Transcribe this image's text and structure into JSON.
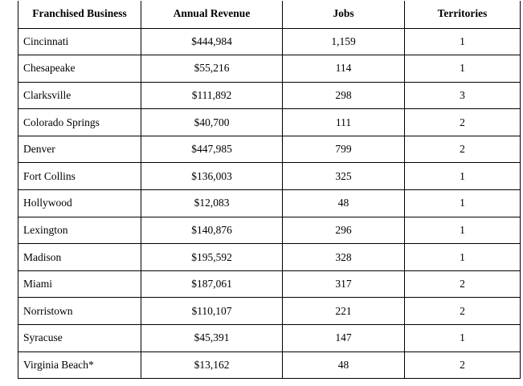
{
  "table": {
    "headers": [
      "Franchised Business",
      "Annual Revenue",
      "Jobs",
      "Territories"
    ],
    "rows": [
      {
        "name": "Cincinnati",
        "revenue": "$444,984",
        "jobs": "1,159",
        "territories": "1"
      },
      {
        "name": "Chesapeake",
        "revenue": "$55,216",
        "jobs": "114",
        "territories": "1"
      },
      {
        "name": "Clarksville",
        "revenue": "$111,892",
        "jobs": "298",
        "territories": "3"
      },
      {
        "name": "Colorado Springs",
        "revenue": "$40,700",
        "jobs": "111",
        "territories": "2"
      },
      {
        "name": "Denver",
        "revenue": "$447,985",
        "jobs": "799",
        "territories": "2"
      },
      {
        "name": "Fort Collins",
        "revenue": "$136,003",
        "jobs": "325",
        "territories": "1"
      },
      {
        "name": "Hollywood",
        "revenue": "$12,083",
        "jobs": "48",
        "territories": "1"
      },
      {
        "name": "Lexington",
        "revenue": "$140,876",
        "jobs": "296",
        "territories": "1"
      },
      {
        "name": "Madison",
        "revenue": "$195,592",
        "jobs": "328",
        "territories": "1"
      },
      {
        "name": "Miami",
        "revenue": "$187,061",
        "jobs": "317",
        "territories": "2"
      },
      {
        "name": "Norristown",
        "revenue": "$110,107",
        "jobs": "221",
        "territories": "2"
      },
      {
        "name": "Syracuse",
        "revenue": "$45,391",
        "jobs": "147",
        "territories": "1"
      },
      {
        "name": "Virginia Beach*",
        "revenue": "$13,162",
        "jobs": "48",
        "territories": "2"
      }
    ]
  }
}
